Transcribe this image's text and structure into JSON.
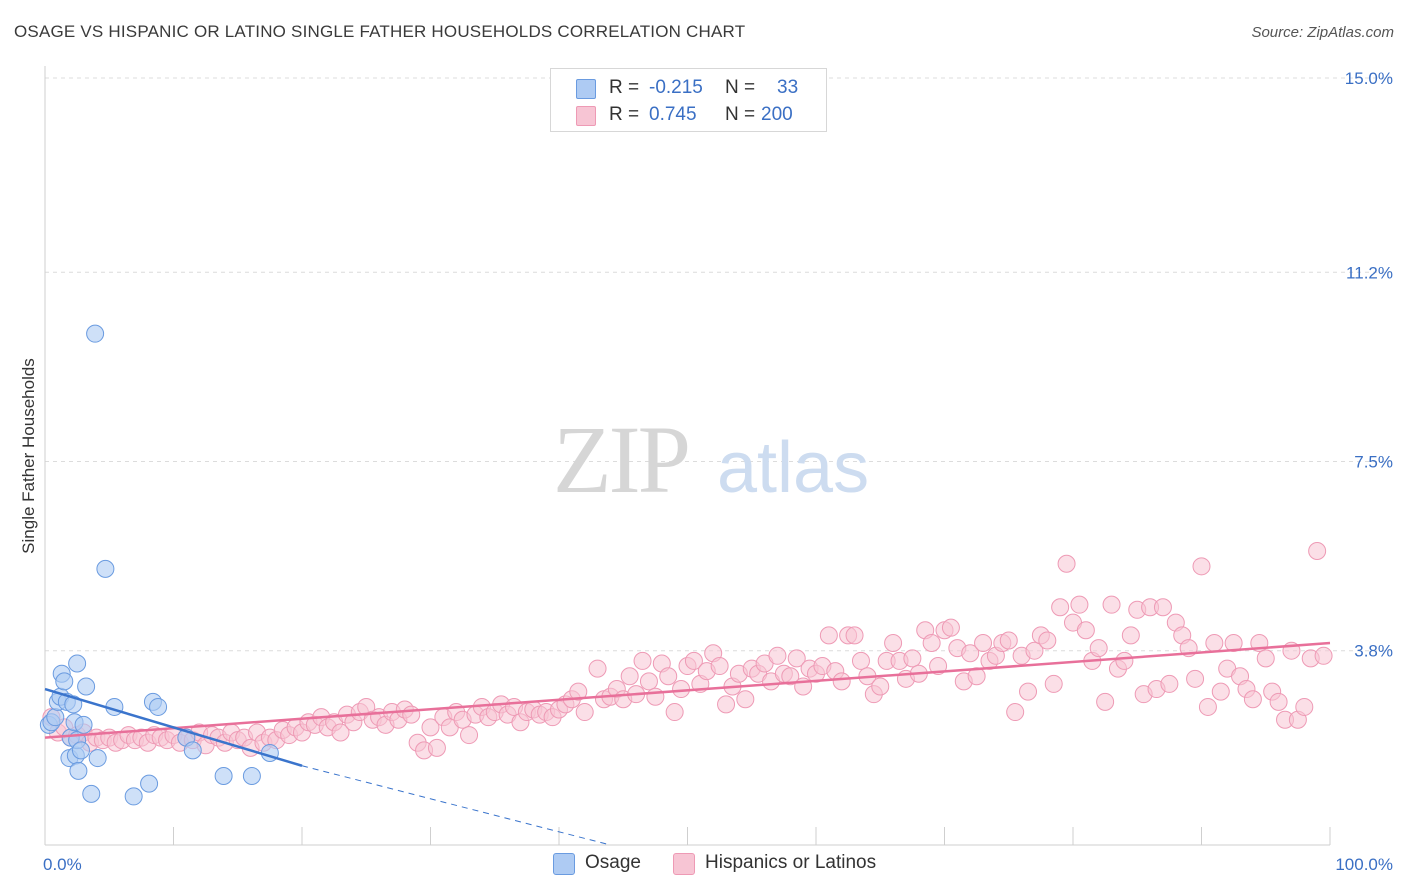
{
  "title": "OSAGE VS HISPANIC OR LATINO SINGLE FATHER HOUSEHOLDS CORRELATION CHART",
  "source": "Source: ZipAtlas.com",
  "watermark": {
    "zip": "ZIP",
    "atlas": "atlas"
  },
  "legend": {
    "rows": [
      {
        "r_label": "R =",
        "r_value": "-0.215",
        "n_label": "N =",
        "n_value": "33"
      },
      {
        "r_label": "R =",
        "r_value": "0.745",
        "n_label": "N =",
        "n_value": "200"
      }
    ]
  },
  "bottom_legend": [
    {
      "label": "Osage"
    },
    {
      "label": "Hispanics or Latinos"
    }
  ],
  "colors": {
    "osage_fill": "#aecbf3",
    "osage_stroke": "#6a9be0",
    "osage_line": "#3a74cc",
    "hisp_fill": "#f7c5d4",
    "hisp_stroke": "#ee9ab5",
    "hisp_line": "#e8709a",
    "axis_text": "#3a6fc4",
    "grid": "#dcdcdc"
  },
  "chart_data": {
    "type": "scatter",
    "xlabel": "",
    "ylabel": "Single Father Households",
    "xlim": [
      0,
      100
    ],
    "ylim": [
      0,
      15.0
    ],
    "x_tick_labels": [
      "0.0%",
      "100.0%"
    ],
    "y_ticks": [
      3.8,
      7.5,
      11.2,
      15.0
    ],
    "y_tick_labels": [
      "3.8%",
      "7.5%",
      "11.2%",
      "15.0%"
    ],
    "grid": true,
    "legend_position": "top-center",
    "series": [
      {
        "name": "Osage",
        "trend": {
          "x": [
            0,
            20
          ],
          "y": [
            3.05,
            1.55
          ],
          "dashed_extension_to": [
            44,
            0
          ]
        },
        "points": [
          [
            0.3,
            2.35
          ],
          [
            0.5,
            2.4
          ],
          [
            0.8,
            2.5
          ],
          [
            1.0,
            2.8
          ],
          [
            1.2,
            2.9
          ],
          [
            1.3,
            3.35
          ],
          [
            1.5,
            3.2
          ],
          [
            1.7,
            2.8
          ],
          [
            1.9,
            1.7
          ],
          [
            2.0,
            2.1
          ],
          [
            2.2,
            2.75
          ],
          [
            2.3,
            2.4
          ],
          [
            2.4,
            1.75
          ],
          [
            2.5,
            2.05
          ],
          [
            2.5,
            3.55
          ],
          [
            2.6,
            1.45
          ],
          [
            2.8,
            1.85
          ],
          [
            3.0,
            2.35
          ],
          [
            3.2,
            3.1
          ],
          [
            3.6,
            1.0
          ],
          [
            3.9,
            10.0
          ],
          [
            4.1,
            1.7
          ],
          [
            4.7,
            5.4
          ],
          [
            5.4,
            2.7
          ],
          [
            8.1,
            1.2
          ],
          [
            6.9,
            0.95
          ],
          [
            8.4,
            2.8
          ],
          [
            8.8,
            2.7
          ],
          [
            11.0,
            2.1
          ],
          [
            11.5,
            1.85
          ],
          [
            13.9,
            1.35
          ],
          [
            16.1,
            1.35
          ],
          [
            17.5,
            1.8
          ]
        ]
      },
      {
        "name": "Hispanics or Latinos",
        "trend": {
          "x": [
            0,
            100
          ],
          "y": [
            2.1,
            3.95
          ]
        },
        "points": [
          [
            0.5,
            2.5
          ],
          [
            1,
            2.2
          ],
          [
            1.5,
            2.3
          ],
          [
            2,
            2.1
          ],
          [
            2.5,
            2.15
          ],
          [
            3,
            2.2
          ],
          [
            3.5,
            2.0
          ],
          [
            4,
            2.1
          ],
          [
            4.5,
            2.05
          ],
          [
            5,
            2.1
          ],
          [
            5.5,
            2.0
          ],
          [
            6,
            2.05
          ],
          [
            6.5,
            2.15
          ],
          [
            7,
            2.05
          ],
          [
            7.5,
            2.1
          ],
          [
            8,
            2.0
          ],
          [
            8.5,
            2.15
          ],
          [
            9,
            2.1
          ],
          [
            9.5,
            2.05
          ],
          [
            10,
            2.15
          ],
          [
            10.5,
            2.0
          ],
          [
            11,
            2.1
          ],
          [
            11.5,
            2.05
          ],
          [
            12,
            2.2
          ],
          [
            12.5,
            1.95
          ],
          [
            13,
            2.15
          ],
          [
            13.5,
            2.1
          ],
          [
            14,
            2.0
          ],
          [
            14.5,
            2.2
          ],
          [
            15,
            2.05
          ],
          [
            15.5,
            2.1
          ],
          [
            16,
            1.9
          ],
          [
            16.5,
            2.2
          ],
          [
            17,
            2.0
          ],
          [
            17.5,
            2.1
          ],
          [
            18,
            2.05
          ],
          [
            18.5,
            2.25
          ],
          [
            19,
            2.15
          ],
          [
            19.5,
            2.3
          ],
          [
            20,
            2.2
          ],
          [
            20.5,
            2.4
          ],
          [
            21,
            2.35
          ],
          [
            21.5,
            2.5
          ],
          [
            22,
            2.3
          ],
          [
            22.5,
            2.4
          ],
          [
            23,
            2.2
          ],
          [
            23.5,
            2.55
          ],
          [
            24,
            2.4
          ],
          [
            24.5,
            2.6
          ],
          [
            25,
            2.7
          ],
          [
            25.5,
            2.45
          ],
          [
            26,
            2.5
          ],
          [
            26.5,
            2.35
          ],
          [
            27,
            2.6
          ],
          [
            27.5,
            2.45
          ],
          [
            28,
            2.65
          ],
          [
            28.5,
            2.55
          ],
          [
            29,
            2.0
          ],
          [
            29.5,
            1.85
          ],
          [
            30,
            2.3
          ],
          [
            30.5,
            1.9
          ],
          [
            31,
            2.5
          ],
          [
            31.5,
            2.3
          ],
          [
            32,
            2.6
          ],
          [
            32.5,
            2.45
          ],
          [
            33,
            2.15
          ],
          [
            33.5,
            2.55
          ],
          [
            34,
            2.7
          ],
          [
            34.5,
            2.5
          ],
          [
            35,
            2.6
          ],
          [
            35.5,
            2.75
          ],
          [
            36,
            2.55
          ],
          [
            36.5,
            2.7
          ],
          [
            37,
            2.4
          ],
          [
            37.5,
            2.6
          ],
          [
            38,
            2.65
          ],
          [
            38.5,
            2.55
          ],
          [
            39,
            2.6
          ],
          [
            39.5,
            2.5
          ],
          [
            40,
            2.65
          ],
          [
            40.5,
            2.75
          ],
          [
            41,
            2.85
          ],
          [
            41.5,
            3.0
          ],
          [
            42,
            2.6
          ],
          [
            43,
            3.45
          ],
          [
            43.5,
            2.85
          ],
          [
            44,
            2.9
          ],
          [
            44.5,
            3.05
          ],
          [
            45,
            2.85
          ],
          [
            45.5,
            3.3
          ],
          [
            46,
            2.95
          ],
          [
            46.5,
            3.6
          ],
          [
            47,
            3.2
          ],
          [
            47.5,
            2.9
          ],
          [
            48,
            3.55
          ],
          [
            48.5,
            3.3
          ],
          [
            49,
            2.6
          ],
          [
            49.5,
            3.05
          ],
          [
            50,
            3.5
          ],
          [
            50.5,
            3.6
          ],
          [
            51,
            3.15
          ],
          [
            51.5,
            3.4
          ],
          [
            52,
            3.75
          ],
          [
            52.5,
            3.5
          ],
          [
            53,
            2.75
          ],
          [
            53.5,
            3.1
          ],
          [
            54,
            3.35
          ],
          [
            54.5,
            2.85
          ],
          [
            55,
            3.45
          ],
          [
            55.5,
            3.35
          ],
          [
            56,
            3.55
          ],
          [
            56.5,
            3.2
          ],
          [
            57,
            3.7
          ],
          [
            57.5,
            3.35
          ],
          [
            58,
            3.3
          ],
          [
            58.5,
            3.65
          ],
          [
            59,
            3.1
          ],
          [
            59.5,
            3.45
          ],
          [
            60,
            3.35
          ],
          [
            60.5,
            3.5
          ],
          [
            61,
            4.1
          ],
          [
            61.5,
            3.4
          ],
          [
            62,
            3.2
          ],
          [
            62.5,
            4.1
          ],
          [
            63,
            4.1
          ],
          [
            63.5,
            3.6
          ],
          [
            64,
            3.3
          ],
          [
            64.5,
            2.95
          ],
          [
            65,
            3.1
          ],
          [
            65.5,
            3.6
          ],
          [
            66,
            3.95
          ],
          [
            66.5,
            3.6
          ],
          [
            67,
            3.25
          ],
          [
            67.5,
            3.65
          ],
          [
            68,
            3.35
          ],
          [
            68.5,
            4.2
          ],
          [
            69,
            3.95
          ],
          [
            69.5,
            3.5
          ],
          [
            70,
            4.2
          ],
          [
            70.5,
            4.25
          ],
          [
            71,
            3.85
          ],
          [
            71.5,
            3.2
          ],
          [
            72,
            3.75
          ],
          [
            72.5,
            3.3
          ],
          [
            73,
            3.95
          ],
          [
            73.5,
            3.6
          ],
          [
            74,
            3.7
          ],
          [
            74.5,
            3.95
          ],
          [
            75,
            4.0
          ],
          [
            75.5,
            2.6
          ],
          [
            76,
            3.7
          ],
          [
            76.5,
            3.0
          ],
          [
            77,
            3.8
          ],
          [
            77.5,
            4.1
          ],
          [
            78,
            4.0
          ],
          [
            78.5,
            3.15
          ],
          [
            79,
            4.65
          ],
          [
            79.5,
            5.5
          ],
          [
            80,
            4.35
          ],
          [
            80.5,
            4.7
          ],
          [
            81,
            4.2
          ],
          [
            81.5,
            3.6
          ],
          [
            82,
            3.85
          ],
          [
            82.5,
            2.8
          ],
          [
            83,
            4.7
          ],
          [
            83.5,
            3.45
          ],
          [
            84,
            3.6
          ],
          [
            84.5,
            4.1
          ],
          [
            85,
            4.6
          ],
          [
            85.5,
            2.95
          ],
          [
            86,
            4.65
          ],
          [
            86.5,
            3.05
          ],
          [
            87,
            4.65
          ],
          [
            87.5,
            3.15
          ],
          [
            88,
            4.35
          ],
          [
            88.5,
            4.1
          ],
          [
            89,
            3.85
          ],
          [
            89.5,
            3.25
          ],
          [
            90,
            5.45
          ],
          [
            90.5,
            2.7
          ],
          [
            91,
            3.95
          ],
          [
            91.5,
            3.0
          ],
          [
            92,
            3.45
          ],
          [
            92.5,
            3.95
          ],
          [
            93,
            3.3
          ],
          [
            93.5,
            3.05
          ],
          [
            94,
            2.85
          ],
          [
            94.5,
            3.95
          ],
          [
            95,
            3.65
          ],
          [
            95.5,
            3.0
          ],
          [
            96,
            2.8
          ],
          [
            96.5,
            2.45
          ],
          [
            97,
            3.8
          ],
          [
            97.5,
            2.45
          ],
          [
            98,
            2.7
          ],
          [
            98.5,
            3.65
          ],
          [
            99,
            5.75
          ],
          [
            99.5,
            3.7
          ]
        ]
      }
    ]
  }
}
